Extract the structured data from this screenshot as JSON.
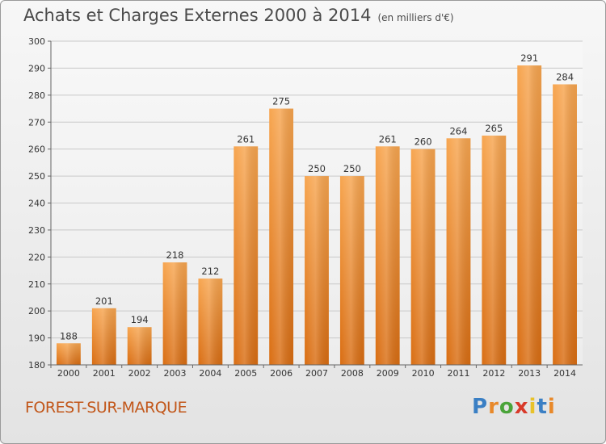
{
  "header": {
    "title": "Achats et Charges Externes 2000 à 2014",
    "subtitle": "(en milliers d'€)"
  },
  "footer": {
    "town": "FOREST-SUR-MARQUE",
    "logo": "Proxiti"
  },
  "colors": {
    "bar_top": "#f7a54f",
    "bar_bottom": "#d96d12",
    "town": "#c2571a"
  },
  "chart_data": {
    "type": "bar",
    "categories": [
      "2000",
      "2001",
      "2002",
      "2003",
      "2004",
      "2005",
      "2006",
      "2007",
      "2008",
      "2009",
      "2010",
      "2011",
      "2012",
      "2013",
      "2014"
    ],
    "values": [
      188,
      201,
      194,
      218,
      212,
      261,
      275,
      250,
      250,
      261,
      260,
      264,
      265,
      291,
      284
    ],
    "title": "Achats et Charges Externes 2000 à 2014",
    "subtitle": "(en milliers d'€)",
    "xlabel": "",
    "ylabel": "",
    "ylim": [
      180,
      300
    ],
    "yticks": [
      180,
      190,
      200,
      210,
      220,
      230,
      240,
      250,
      260,
      270,
      280,
      290,
      300
    ],
    "grid": true,
    "data_labels": true
  }
}
